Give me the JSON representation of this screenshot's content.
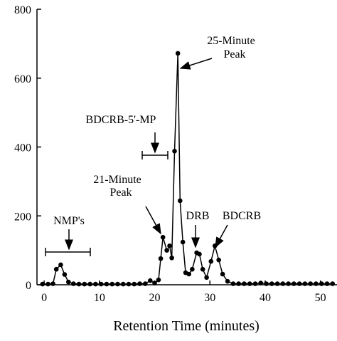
{
  "chart_data": {
    "type": "line",
    "x_label": "Retention Time (minutes)",
    "x": [
      -0.3,
      0.7,
      1.6,
      2.2,
      3.0,
      3.7,
      4.4,
      5.3,
      6.3,
      7.3,
      8.3,
      9.3,
      10.3,
      11.3,
      12.3,
      13.3,
      14.3,
      15.3,
      16.3,
      17.3,
      18.3,
      19.2,
      20.0,
      20.7,
      21.1,
      21.5,
      22.2,
      22.7,
      23.1,
      23.6,
      24.2,
      24.6,
      25.1,
      25.6,
      26.2,
      26.8,
      27.6,
      28.1,
      28.7,
      29.4,
      30.2,
      30.9,
      31.6,
      32.3,
      33.2,
      34.2,
      35.2,
      36.2,
      37.2,
      38.2,
      39.2,
      40.2,
      41.2,
      42.2,
      43.2,
      44.2,
      45.2,
      46.2,
      47.2,
      48.2,
      49.2,
      50.2,
      51.2,
      52.2
    ],
    "values": [
      2,
      2,
      3,
      45,
      58,
      30,
      8,
      3,
      2,
      2,
      2,
      2,
      2,
      2,
      2,
      2,
      2,
      2,
      2,
      3,
      3,
      12,
      5,
      14,
      76,
      138,
      100,
      113,
      78,
      388,
      672,
      244,
      124,
      35,
      31,
      45,
      93,
      89,
      45,
      21,
      68,
      113,
      72,
      31,
      10,
      3,
      3,
      3,
      3,
      3,
      5,
      3,
      3,
      3,
      3,
      3,
      3,
      3,
      3,
      3,
      3,
      3,
      3,
      3
    ],
    "color": "#000000",
    "xlim": [
      -1.3,
      53
    ],
    "ylim": [
      0,
      800
    ],
    "xticks": [
      0,
      10,
      20,
      30,
      40,
      50
    ],
    "yticks": [
      0,
      200,
      400,
      600,
      800
    ],
    "annotations": [
      [
        "25-Minute",
        "Peak"
      ],
      [
        "BDCRB-5'-MP"
      ],
      [
        "21-Minute",
        "Peak"
      ],
      [
        "NMP's"
      ],
      [
        "DRB"
      ],
      [
        "BDCRB"
      ]
    ]
  }
}
